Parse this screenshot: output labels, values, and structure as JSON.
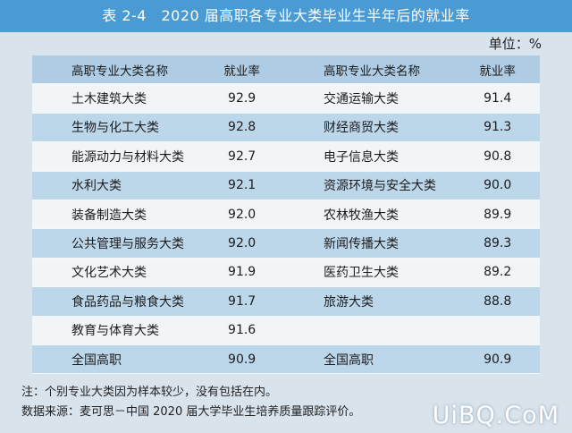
{
  "title": "表 2-4　2020 届高职各专业大类毕业生半年后的就业率",
  "unit": "单位：%",
  "headers": {
    "left_name": "高职专业大类名称",
    "left_rate": "就业率",
    "right_name": "高职专业大类名称",
    "right_rate": "就业率"
  },
  "rows": [
    {
      "left_name": "土木建筑大类",
      "left_rate": "92.9",
      "right_name": "交通运输大类",
      "right_rate": "91.4"
    },
    {
      "left_name": "生物与化工大类",
      "left_rate": "92.8",
      "right_name": "财经商贸大类",
      "right_rate": "91.3"
    },
    {
      "left_name": "能源动力与材料大类",
      "left_rate": "92.7",
      "right_name": "电子信息大类",
      "right_rate": "90.8"
    },
    {
      "left_name": "水利大类",
      "left_rate": "92.1",
      "right_name": "资源环境与安全大类",
      "right_rate": "90.0"
    },
    {
      "left_name": "装备制造大类",
      "left_rate": "92.0",
      "right_name": "农林牧渔大类",
      "right_rate": "89.9"
    },
    {
      "left_name": "公共管理与服务大类",
      "left_rate": "92.0",
      "right_name": "新闻传播大类",
      "right_rate": "89.3"
    },
    {
      "left_name": "文化艺术大类",
      "left_rate": "91.9",
      "right_name": "医药卫生大类",
      "right_rate": "89.2"
    },
    {
      "left_name": "食品药品与粮食大类",
      "left_rate": "91.7",
      "right_name": "旅游大类",
      "right_rate": "88.8"
    },
    {
      "left_name": "教育与体育大类",
      "left_rate": "91.6",
      "right_name": "",
      "right_rate": ""
    },
    {
      "left_name": "全国高职",
      "left_rate": "90.9",
      "right_name": "全国高职",
      "right_rate": "90.9"
    }
  ],
  "notes": {
    "note": "注：个别专业大类因为样本较少，没有包括在内。",
    "source": "数据来源：麦可思－中国 2020 届大学毕业生培养质量跟踪评价。"
  },
  "watermark": "UiBQ.CoM"
}
